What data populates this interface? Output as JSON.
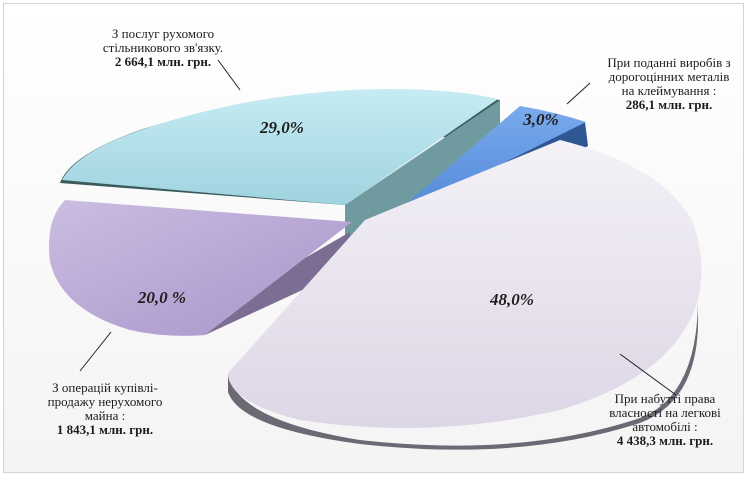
{
  "chart_data": {
    "type": "pie",
    "style": "3d-exploded",
    "slices": [
      {
        "key": "mobile",
        "label_lines": [
          "З послуг рухомого",
          "стільникового зв'язку."
        ],
        "amount": "2 664,1 млн. грн.",
        "value": 29.0,
        "percent_label": "29,0%",
        "color": "#a8d9e3"
      },
      {
        "key": "metals",
        "label_lines": [
          "При поданні виробів з",
          "дорогоцінних металів",
          "на клеймування  :"
        ],
        "amount": "286,1 млн. грн.",
        "value": 3.0,
        "percent_label": "3,0%",
        "color": "#5b91d9"
      },
      {
        "key": "cars",
        "label_lines": [
          "При набутті  права",
          "власності  на легкові",
          "автомобілі  :"
        ],
        "amount": "4 438,3 млн. грн.",
        "value": 48.0,
        "percent_label": "48,0%",
        "color": "#e6e1ec"
      },
      {
        "key": "realty",
        "label_lines": [
          "З операцій купівлі-",
          "продажу нерухомого",
          "майна :"
        ],
        "amount": "1 843,1 млн. грн.",
        "value": 20.0,
        "percent_label": "20,0 %",
        "color": "#b6a6d2"
      }
    ]
  }
}
